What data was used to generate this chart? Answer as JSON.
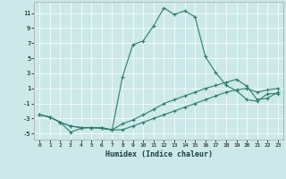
{
  "xlabel": "Humidex (Indice chaleur)",
  "bg_color": "#cce8e8",
  "line_color": "#2e7d6e",
  "grid_color": "#ffffff",
  "xlim": [
    -0.5,
    23.5
  ],
  "ylim": [
    -5.8,
    12.5
  ],
  "xticks": [
    0,
    1,
    2,
    3,
    4,
    5,
    6,
    7,
    8,
    9,
    10,
    11,
    12,
    13,
    14,
    15,
    16,
    17,
    18,
    19,
    20,
    21,
    22,
    23
  ],
  "yticks": [
    -5,
    -3,
    -1,
    1,
    3,
    5,
    7,
    9,
    11
  ],
  "line1_x": [
    0,
    1,
    2,
    3,
    4,
    5,
    6,
    7,
    8,
    9,
    10,
    11,
    12,
    13,
    14,
    15,
    16,
    17,
    18,
    19,
    20,
    21,
    22,
    23
  ],
  "line1_y": [
    -2.5,
    -2.8,
    -3.5,
    -4.8,
    -4.3,
    -4.2,
    -4.2,
    -4.5,
    2.5,
    6.8,
    7.3,
    9.3,
    11.7,
    10.8,
    11.3,
    10.5,
    5.2,
    3.1,
    1.4,
    0.7,
    -0.5,
    -0.7,
    0.3,
    0.3
  ],
  "line2_x": [
    0,
    1,
    2,
    3,
    4,
    5,
    6,
    7,
    8,
    9,
    10,
    11,
    12,
    13,
    14,
    15,
    16,
    17,
    18,
    19,
    20,
    21,
    22,
    23
  ],
  "line2_y": [
    -2.5,
    -2.8,
    -3.5,
    -4.0,
    -4.2,
    -4.2,
    -4.3,
    -4.5,
    -3.7,
    -3.2,
    -2.5,
    -1.8,
    -1.0,
    -0.5,
    0.0,
    0.5,
    1.0,
    1.4,
    1.8,
    2.2,
    1.3,
    -0.5,
    -0.3,
    0.5
  ],
  "line3_x": [
    0,
    1,
    2,
    3,
    4,
    5,
    6,
    7,
    8,
    9,
    10,
    11,
    12,
    13,
    14,
    15,
    16,
    17,
    18,
    19,
    20,
    21,
    22,
    23
  ],
  "line3_y": [
    -2.5,
    -2.8,
    -3.5,
    -4.0,
    -4.2,
    -4.2,
    -4.3,
    -4.5,
    -4.5,
    -4.0,
    -3.5,
    -3.0,
    -2.5,
    -2.0,
    -1.5,
    -1.0,
    -0.5,
    0.0,
    0.5,
    0.8,
    1.0,
    0.5,
    0.8,
    1.0
  ]
}
